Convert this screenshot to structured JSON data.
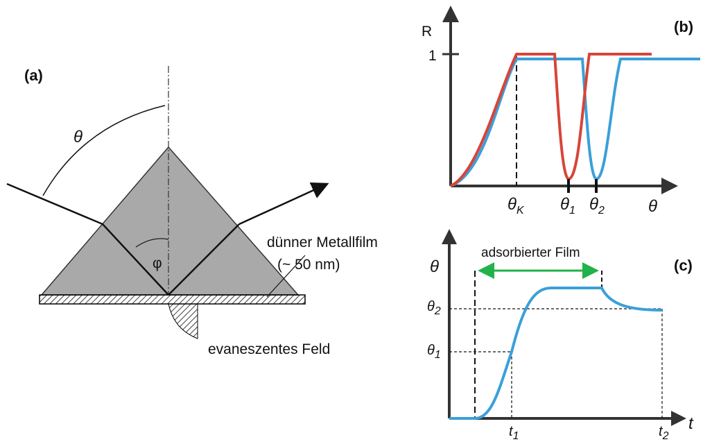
{
  "panel_a": {
    "label": "(a)",
    "theta": "θ",
    "phi": "φ",
    "film": "dünner Metallfilm",
    "thickness": "(~ 50 nm)",
    "field": "evaneszentes Feld"
  },
  "panel_b": {
    "label": "(b)",
    "y_axis": "R",
    "y_tick": "1",
    "x_axis": "θ",
    "x_ticks": [
      {
        "symbol": "θ",
        "subscript": "K"
      },
      {
        "symbol": "θ",
        "subscript": "1"
      },
      {
        "symbol": "θ",
        "subscript": "2"
      }
    ]
  },
  "panel_c": {
    "label": "(c)",
    "y_axis": "θ",
    "x_axis": "t",
    "span_label": "adsorbierter Film",
    "y_ticks": [
      {
        "symbol": "θ",
        "subscript": "2"
      },
      {
        "symbol": "θ",
        "subscript": "1"
      }
    ],
    "x_ticks": [
      {
        "symbol": "t",
        "subscript": "1"
      },
      {
        "symbol": "t",
        "subscript": "2"
      }
    ]
  }
}
